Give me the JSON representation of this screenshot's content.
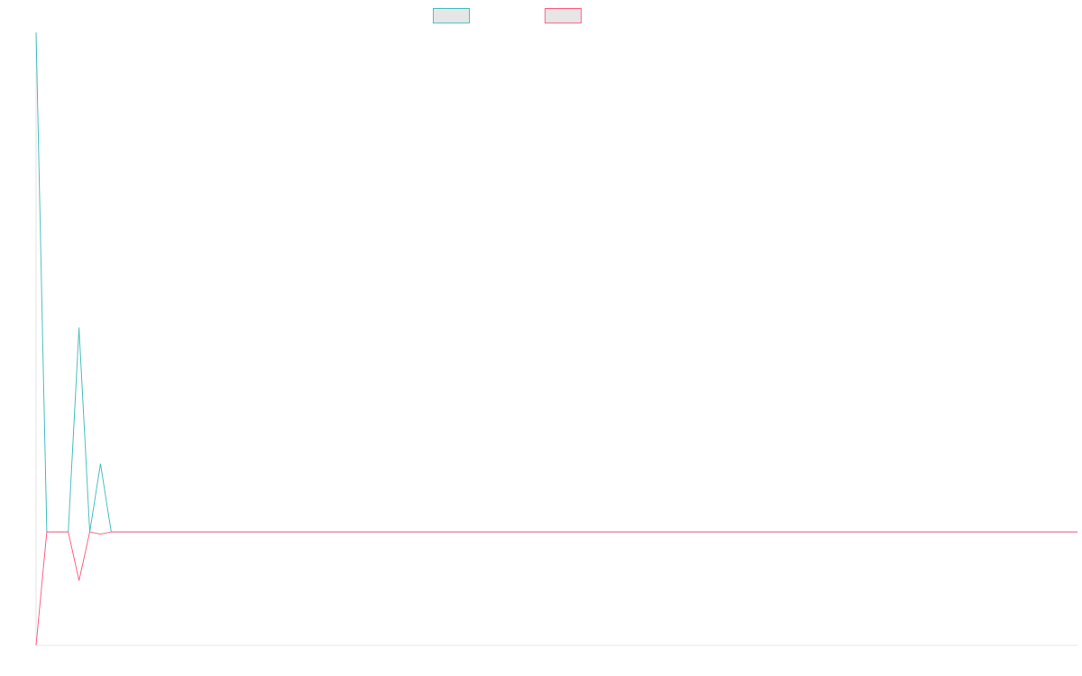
{
  "chart_data": {
    "type": "line",
    "title": "",
    "xlabel": "",
    "ylabel": "",
    "x": [
      0,
      1,
      2,
      3,
      4,
      5,
      6,
      7,
      8,
      9,
      10,
      11,
      12,
      13,
      14,
      15,
      16,
      17,
      18,
      19,
      20,
      21,
      22,
      23,
      24,
      25,
      26,
      27,
      28,
      29,
      30,
      31,
      32,
      33,
      34,
      35,
      36,
      37,
      38,
      39,
      40,
      41,
      42,
      43,
      44,
      45,
      46,
      47,
      48,
      49,
      50,
      51,
      52,
      53,
      54,
      55,
      56,
      57,
      58,
      59,
      60,
      61,
      62,
      63,
      64,
      65,
      66,
      67,
      68,
      69,
      70,
      71,
      72,
      73,
      74,
      75,
      76,
      77,
      78,
      79,
      80,
      81,
      82,
      83,
      84,
      85,
      86,
      87,
      88,
      89,
      90,
      91,
      92,
      93,
      94,
      95,
      96,
      97
    ],
    "ylim": [
      -1,
      4.4
    ],
    "grid": false,
    "legend_position": "top-center",
    "series": [
      {
        "color": "#4bc0c0",
        "values": [
          4.4,
          0,
          0,
          0,
          1.8,
          0,
          0.6,
          0,
          0,
          0,
          0,
          0,
          0,
          0,
          0,
          0,
          0,
          0,
          0,
          0,
          0,
          0,
          0,
          0,
          0,
          0,
          0,
          0,
          0,
          0,
          0,
          0,
          0,
          0,
          0,
          0,
          0,
          0,
          0,
          0,
          0,
          0,
          0,
          0,
          0,
          0,
          0,
          0,
          0,
          0,
          0,
          0,
          0,
          0,
          0,
          0,
          0,
          0,
          0,
          0,
          0,
          0,
          0,
          0,
          0,
          0,
          0,
          0,
          0,
          0,
          0,
          0,
          0,
          0,
          0,
          0,
          0,
          0,
          0,
          0,
          0,
          0,
          0,
          0,
          0,
          0,
          0,
          0,
          0,
          0,
          0,
          0,
          0,
          0,
          0,
          0,
          0,
          0
        ]
      },
      {
        "color": "#ff6384",
        "values": [
          -1,
          0,
          0,
          0,
          -0.43,
          0,
          -0.02,
          0,
          0,
          0,
          0,
          0,
          0,
          0,
          0,
          0,
          0,
          0,
          0,
          0,
          0,
          0,
          0,
          0,
          0,
          0,
          0,
          0,
          0,
          0,
          0,
          0,
          0,
          0,
          0,
          0,
          0,
          0,
          0,
          0,
          0,
          0,
          0,
          0,
          0,
          0,
          0,
          0,
          0,
          0,
          0,
          0,
          0,
          0,
          0,
          0,
          0,
          0,
          0,
          0,
          0,
          0,
          0,
          0,
          0,
          0,
          0,
          0,
          0,
          0,
          0,
          0,
          0,
          0,
          0,
          0,
          0,
          0,
          0,
          0,
          0,
          0,
          0,
          0,
          0,
          0,
          0,
          0,
          0,
          0,
          0,
          0,
          0,
          0,
          0,
          0,
          0,
          0
        ]
      }
    ]
  }
}
